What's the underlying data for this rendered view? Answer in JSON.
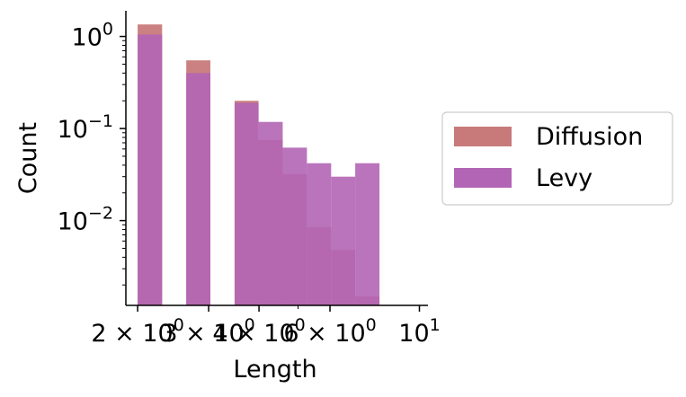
{
  "chart_data": {
    "type": "bar",
    "subtype": "histogram",
    "x_scale": "log",
    "y_scale": "log",
    "xlabel": "Length",
    "ylabel": "Count",
    "xlim": [
      1.87,
      10.5
    ],
    "ylim": [
      0.0012,
      1.9
    ],
    "x_ticks": [
      {
        "value": 2,
        "base": "2 × 10",
        "exp": "0"
      },
      {
        "value": 3,
        "base": "3 × 10",
        "exp": "0"
      },
      {
        "value": 4,
        "base": "4 × 10",
        "exp": "0"
      },
      {
        "value": 6,
        "base": "6 × 10",
        "exp": "0"
      },
      {
        "value": 10,
        "base": "10",
        "exp": "1"
      }
    ],
    "y_ticks": [
      {
        "value": 1,
        "base": "10",
        "exp": "0"
      },
      {
        "value": 0.1,
        "base": "10",
        "exp": "−1"
      },
      {
        "value": 0.01,
        "base": "10",
        "exp": "−2"
      }
    ],
    "bin_edges": [
      2.0,
      2.3,
      2.64,
      3.03,
      3.48,
      3.99,
      4.58,
      5.26,
      6.04,
      6.93,
      7.96,
      9.14,
      10.5
    ],
    "series": [
      {
        "name": "Diffusion",
        "color": "#c87a7a",
        "values": [
          1.35,
          0,
          0.55,
          0,
          0.2,
          0.075,
          0.032,
          0.0085,
          0.0048,
          0.0015,
          0,
          0
        ]
      },
      {
        "name": "Levy",
        "color": "#b265b5",
        "values": [
          1.05,
          0,
          0.4,
          0,
          0.19,
          0.118,
          0.062,
          0.042,
          0.03,
          0.042,
          0,
          0
        ]
      }
    ],
    "legend_position": "right",
    "grid": false
  }
}
